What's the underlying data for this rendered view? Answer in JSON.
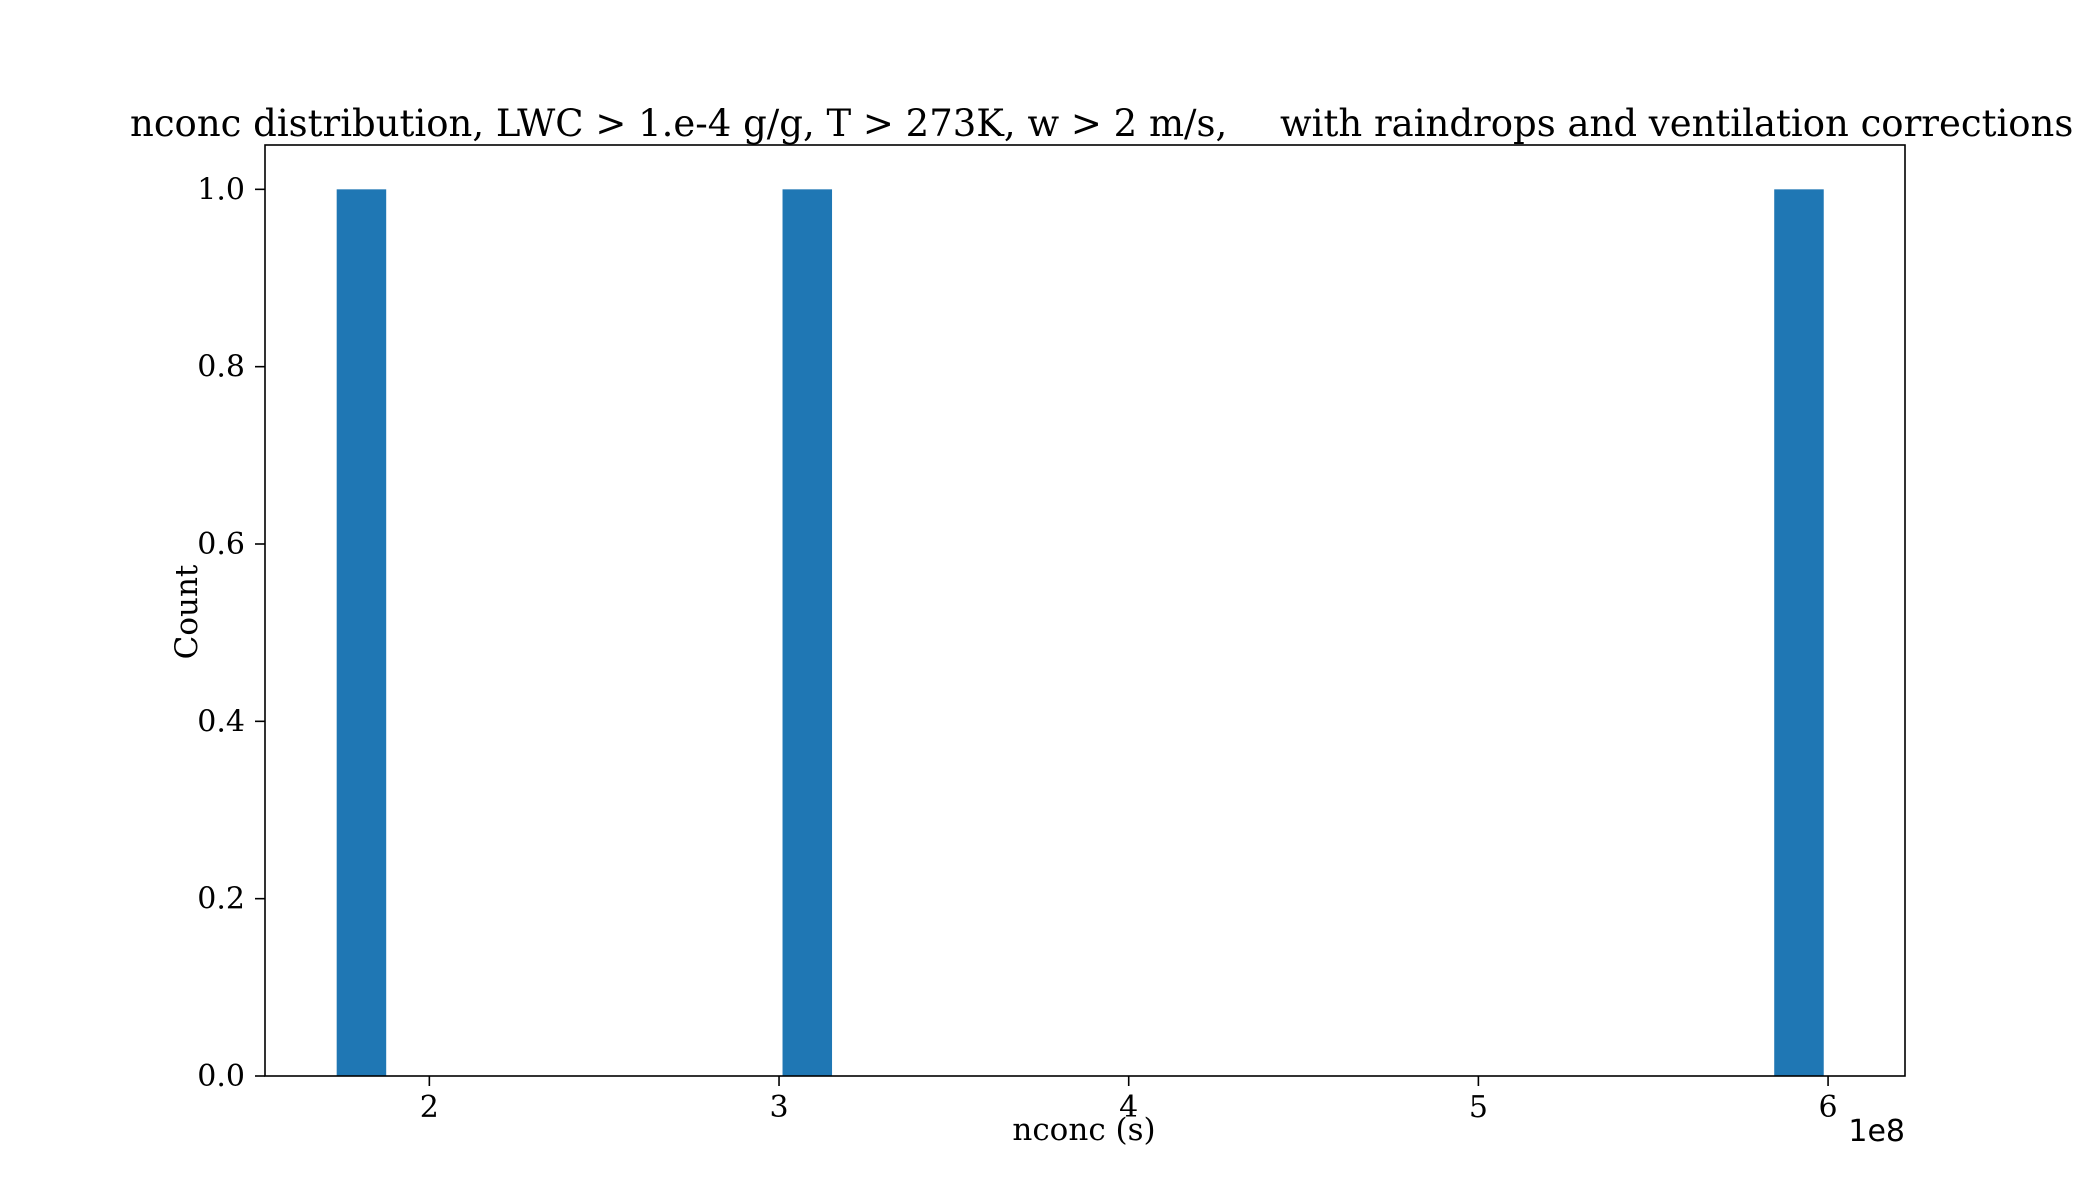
{
  "chart_data": {
    "type": "bar",
    "title_left": "nconc distribution, LWC > 1.e-4 g/g, T > 273K, w > 2 m/s,",
    "title_right": "with raindrops and ventilation corrections",
    "xlabel": "nconc (s)",
    "ylabel": "Count",
    "x_offset_label": "1e8",
    "xlim": [
      1.53,
      6.22
    ],
    "ylim": [
      0.0,
      1.05
    ],
    "x_ticks": [
      2,
      3,
      4,
      5,
      6
    ],
    "x_tick_labels": [
      "2",
      "3",
      "4",
      "5",
      "6"
    ],
    "y_ticks": [
      0.0,
      0.2,
      0.4,
      0.6,
      0.8,
      1.0
    ],
    "y_tick_labels": [
      "0.0",
      "0.2",
      "0.4",
      "0.6",
      "0.8",
      "1.0"
    ],
    "bin_width": 0.1416,
    "bars": [
      {
        "x_start": 1.735,
        "value": 1.0
      },
      {
        "x_start": 3.01,
        "value": 1.0
      },
      {
        "x_start": 5.846,
        "value": 1.0
      }
    ],
    "bar_color": "#1f77b4",
    "grid": false,
    "legend": "none"
  }
}
